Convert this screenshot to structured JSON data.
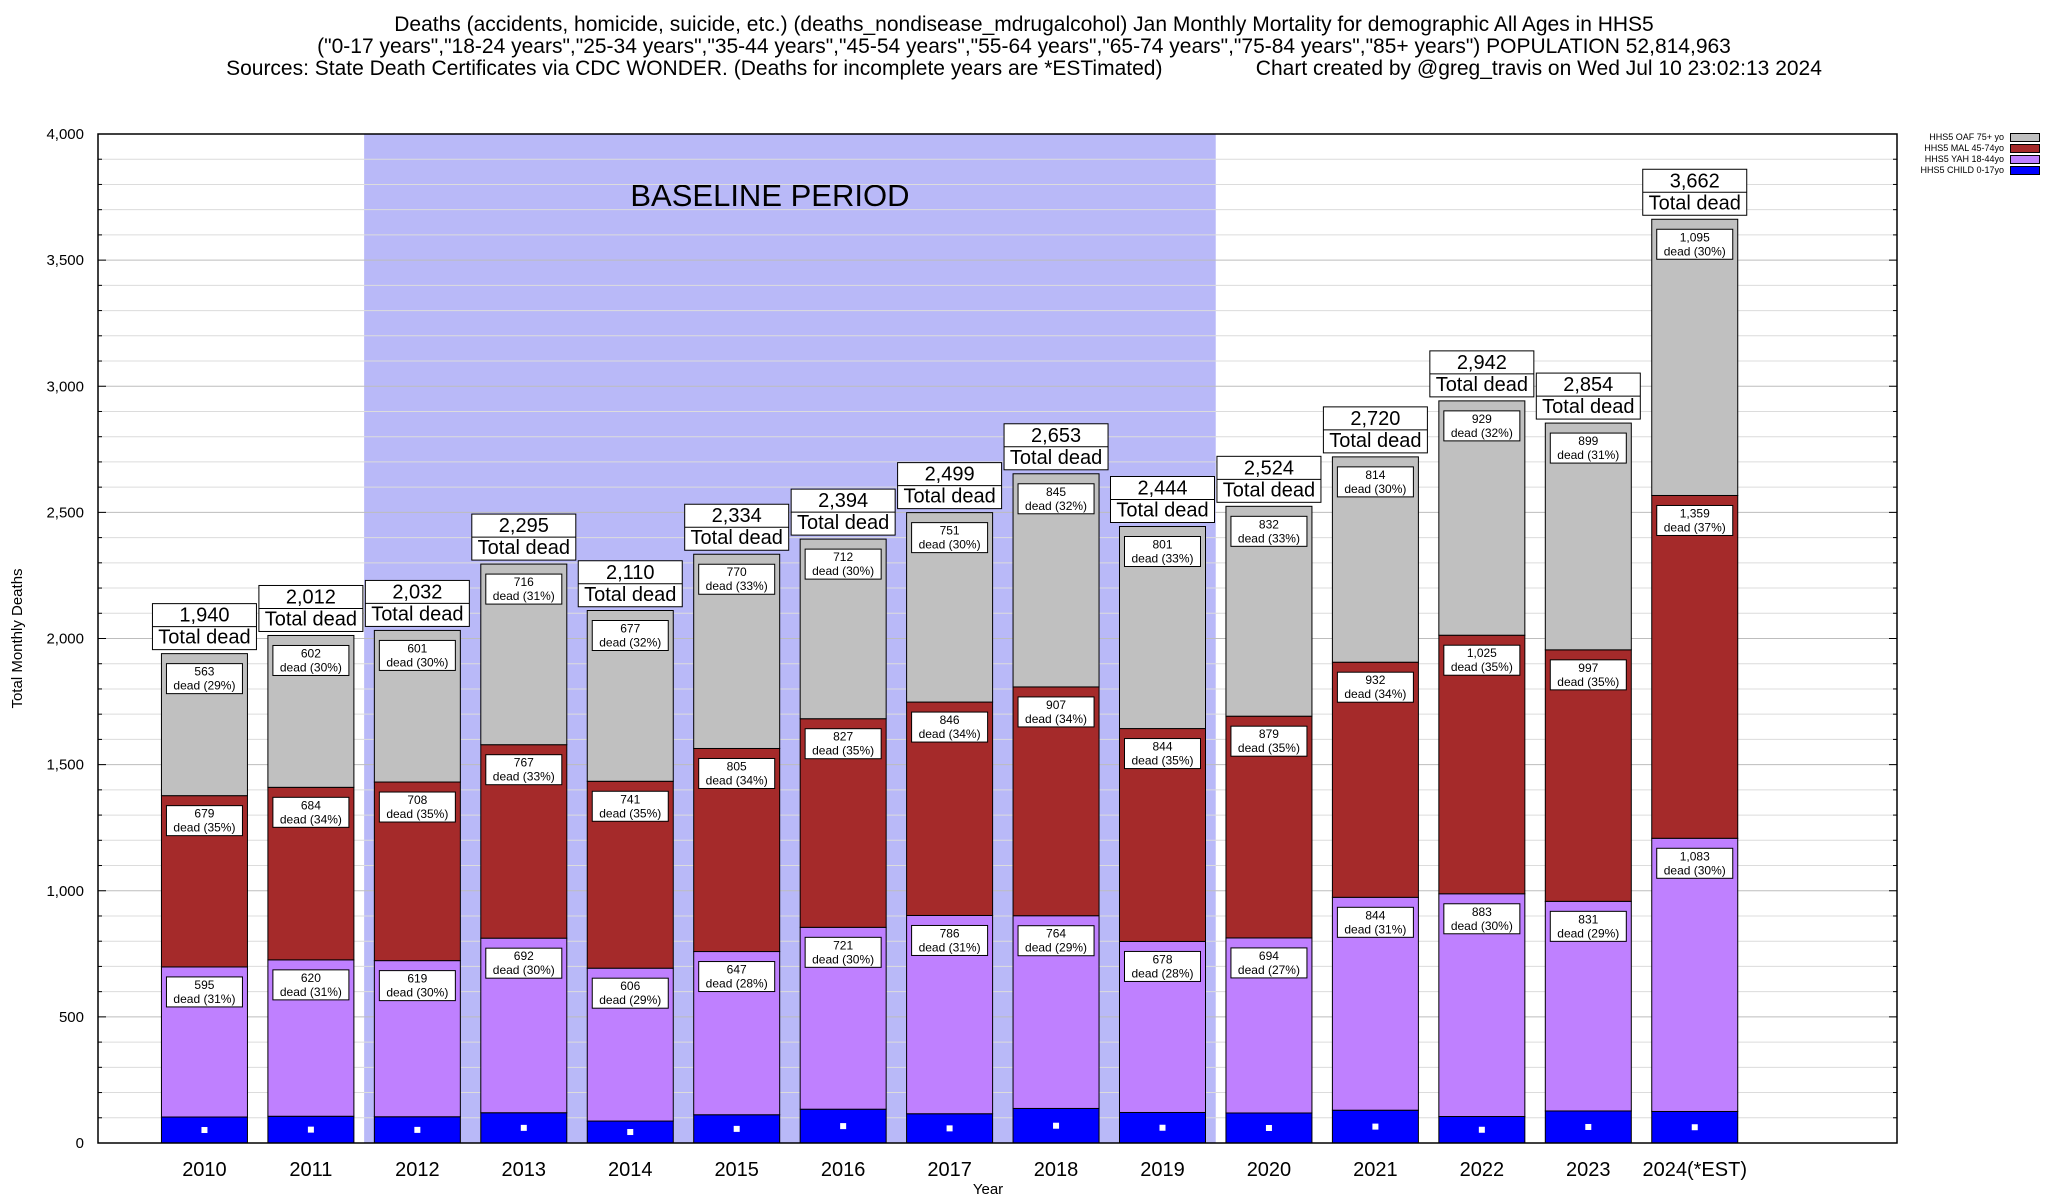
{
  "header": {
    "title_line1": "Deaths (accidents, homicide, suicide, etc.) (deaths_nondisease_mdrugalcohol) Jan Monthly Mortality for demographic All Ages in HHS5",
    "title_line2": "(\"0-17 years\",\"18-24 years\",\"25-34 years\",\"35-44 years\",\"45-54 years\",\"55-64 years\",\"65-74 years\",\"75-84 years\",\"85+ years\") POPULATION 52,814,963",
    "title_line3": "Sources: State Death Certificates via CDC WONDER. (Deaths for incomplete years are *ESTimated)                Chart created by @greg_travis on Wed Jul 10 23:02:13 2024"
  },
  "legend": [
    {
      "name": "HHS5 OAF 75+ yo",
      "color": "#c0c0c0"
    },
    {
      "name": "HHS5 MAL 45-74yo",
      "color": "#a52a2a"
    },
    {
      "name": "HHS5 YAH 18-44yo",
      "color": "#bf80ff"
    },
    {
      "name": "HHS5 CHILD 0-17yo",
      "color": "#0000ff"
    }
  ],
  "chart_data": {
    "type": "bar",
    "stacked": true,
    "xlabel": "Year",
    "ylabel": "Total Monthly Deaths",
    "ylim": [
      0,
      4000
    ],
    "yticks": [
      0,
      500,
      1000,
      1500,
      2000,
      2500,
      3000,
      3500,
      4000
    ],
    "ytick_labels": [
      "0",
      "500",
      "1,000",
      "1,500",
      "2,000",
      "2,500",
      "3,000",
      "3,500",
      "4,000"
    ],
    "categories": [
      "2010",
      "2011",
      "2012",
      "2013",
      "2014",
      "2015",
      "2016",
      "2017",
      "2018",
      "2019",
      "2020",
      "2021",
      "2022",
      "2023",
      "2024(*EST)"
    ],
    "baseline": {
      "label": "BASELINE PERIOD",
      "from": "2012",
      "to": "2019",
      "color": "#b9b9f8"
    },
    "series": [
      {
        "name": "HHS5 CHILD 0-17yo",
        "color": "#0000ff",
        "values": [
          103,
          106,
          104,
          120,
          87,
          112,
          134,
          116,
          137,
          121,
          119,
          130,
          105,
          127,
          125
        ],
        "labels": []
      },
      {
        "name": "HHS5 YAH 18-44yo",
        "color": "#bf80ff",
        "values": [
          595,
          620,
          619,
          692,
          606,
          647,
          721,
          786,
          764,
          678,
          694,
          844,
          883,
          831,
          1083
        ],
        "labels": [
          "595",
          "620",
          "619",
          "692",
          "606",
          "647",
          "721",
          "786",
          "764",
          "678",
          "694",
          "844",
          "883",
          "831",
          "1,083"
        ],
        "pct": [
          "dead (31%)",
          "dead (31%)",
          "dead (30%)",
          "dead (30%)",
          "dead (29%)",
          "dead (28%)",
          "dead (30%)",
          "dead (31%)",
          "dead (29%)",
          "dead (28%)",
          "dead (27%)",
          "dead (31%)",
          "dead (30%)",
          "dead (29%)",
          "dead (30%)"
        ]
      },
      {
        "name": "HHS5 MAL 45-74yo",
        "color": "#a52a2a",
        "values": [
          679,
          684,
          708,
          767,
          741,
          805,
          827,
          846,
          907,
          844,
          879,
          932,
          1025,
          997,
          1359
        ],
        "labels": [
          "679",
          "684",
          "708",
          "767",
          "741",
          "805",
          "827",
          "846",
          "907",
          "844",
          "879",
          "932",
          "1,025",
          "997",
          "1,359"
        ],
        "pct": [
          "dead (35%)",
          "dead (34%)",
          "dead (35%)",
          "dead (33%)",
          "dead (35%)",
          "dead (34%)",
          "dead (35%)",
          "dead (34%)",
          "dead (34%)",
          "dead (35%)",
          "dead (35%)",
          "dead (34%)",
          "dead (35%)",
          "dead (35%)",
          "dead (37%)"
        ]
      },
      {
        "name": "HHS5 OAF 75+ yo",
        "color": "#c0c0c0",
        "values": [
          563,
          602,
          601,
          716,
          677,
          770,
          712,
          751,
          845,
          801,
          832,
          814,
          929,
          899,
          1095
        ],
        "labels": [
          "563",
          "602",
          "601",
          "716",
          "677",
          "770",
          "712",
          "751",
          "845",
          "801",
          "832",
          "814",
          "929",
          "899",
          "1,095"
        ],
        "pct": [
          "dead (29%)",
          "dead (30%)",
          "dead (30%)",
          "dead (31%)",
          "dead (32%)",
          "dead (33%)",
          "dead (30%)",
          "dead (30%)",
          "dead (32%)",
          "dead (33%)",
          "dead (33%)",
          "dead (30%)",
          "dead (32%)",
          "dead (31%)",
          "dead (30%)"
        ]
      }
    ],
    "totals": [
      1940,
      2012,
      2032,
      2295,
      2110,
      2334,
      2394,
      2499,
      2653,
      2444,
      2524,
      2720,
      2942,
      2854,
      3662
    ],
    "total_labels": [
      "1,940",
      "2,012",
      "2,032",
      "2,295",
      "2,110",
      "2,334",
      "2,394",
      "2,499",
      "2,653",
      "2,444",
      "2,524",
      "2,720",
      "2,942",
      "2,854",
      "3,662"
    ],
    "total_caption": "Total dead"
  }
}
